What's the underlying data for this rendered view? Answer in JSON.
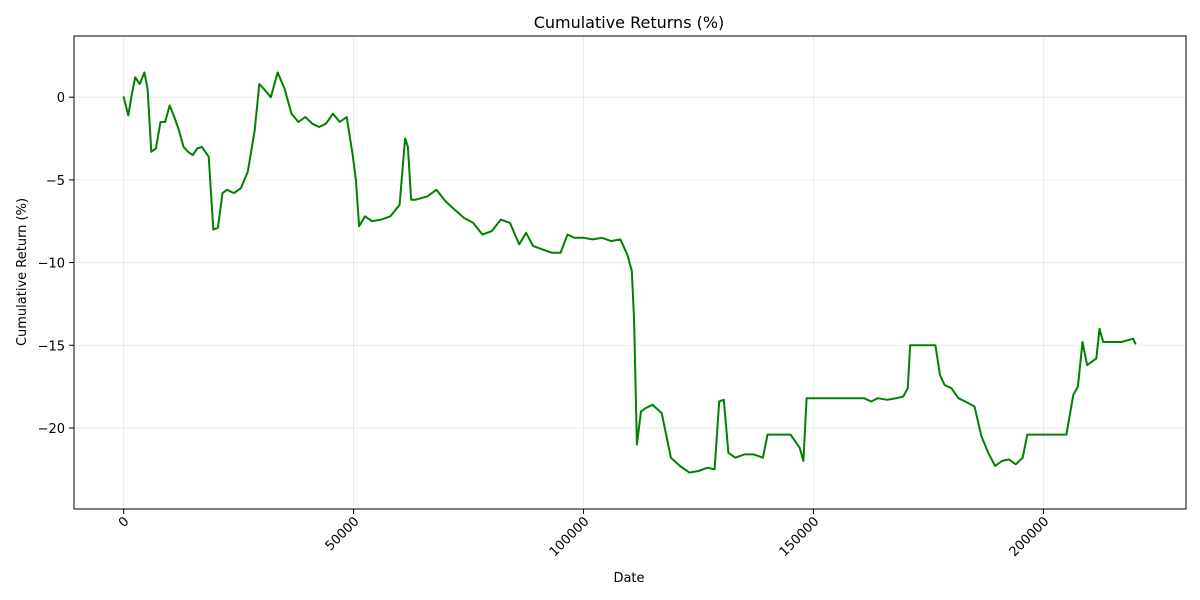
{
  "chart_data": {
    "type": "line",
    "title": "Cumulative Returns (%)",
    "xlabel": "Date",
    "ylabel": "Cumulative Return (%)",
    "xlim": [
      -10800,
      231000
    ],
    "ylim": [
      -24.9,
      3.7
    ],
    "xticks": [
      0,
      50000,
      100000,
      150000,
      200000
    ],
    "xtick_labels": [
      "0",
      "50000",
      "100000",
      "150000",
      "200000"
    ],
    "xtick_rotation": 45,
    "yticks": [
      0,
      -5,
      -10,
      -15,
      -20
    ],
    "ytick_labels": [
      "0",
      "−5",
      "−10",
      "−15",
      "−20"
    ],
    "grid": true,
    "legend": "none",
    "series": [
      {
        "color": "#008000",
        "x": [
          0,
          1000,
          1800,
          2500,
          3500,
          4500,
          5200,
          6000,
          6500,
          7000,
          8000,
          9000,
          10000,
          11000,
          12000,
          13000,
          14000,
          15000,
          16000,
          17000,
          18500,
          19500,
          20500,
          21500,
          22500,
          24000,
          25500,
          27000,
          28500,
          29500,
          30500,
          32000,
          33500,
          35000,
          36500,
          38000,
          39500,
          41000,
          42500,
          44000,
          45500,
          47000,
          48500,
          49800,
          50500,
          51200,
          52500,
          54000,
          56000,
          58000,
          60000,
          61200,
          61800,
          62500,
          63500,
          66000,
          68000,
          70000,
          72000,
          74000,
          76000,
          78000,
          80000,
          82000,
          84000,
          86000,
          87500,
          89000,
          91000,
          93000,
          95000,
          96500,
          98000,
          100000,
          102000,
          104000,
          106000,
          108000,
          109500,
          110500,
          111000,
          111600,
          112500,
          113500,
          115000,
          117000,
          119000,
          121000,
          123000,
          125000,
          127000,
          128500,
          129500,
          130500,
          131500,
          133000,
          135000,
          137000,
          139000,
          140000,
          142500,
          145000,
          147000,
          147800,
          148500,
          155000,
          161000,
          162500,
          164000,
          166000,
          168000,
          169500,
          170500,
          171000,
          172500,
          175000,
          176500,
          177500,
          178500,
          180000,
          181500,
          183000,
          185000,
          186500,
          188000,
          189500,
          191000,
          192500,
          194000,
          195500,
          196500,
          197500,
          201000,
          205000,
          206500,
          207500,
          208500,
          209500,
          210500,
          211500,
          212200,
          213000,
          214500,
          217000,
          219500,
          220000
        ],
        "y": [
          0,
          -1.1,
          0.2,
          1.2,
          0.8,
          1.5,
          0.5,
          -3.3,
          -3.2,
          -3.1,
          -1.5,
          -1.5,
          -0.5,
          -1.2,
          -2.0,
          -3.0,
          -3.3,
          -3.5,
          -3.1,
          -3.0,
          -3.6,
          -8.0,
          -7.9,
          -5.8,
          -5.6,
          -5.8,
          -5.5,
          -4.5,
          -2.0,
          0.8,
          0.5,
          0.0,
          1.5,
          0.5,
          -1.0,
          -1.5,
          -1.2,
          -1.6,
          -1.8,
          -1.6,
          -1.0,
          -1.5,
          -1.2,
          -3.5,
          -5.0,
          -7.8,
          -7.2,
          -7.5,
          -7.4,
          -7.2,
          -6.5,
          -2.5,
          -3.0,
          -6.2,
          -6.2,
          -6.0,
          -5.6,
          -6.3,
          -6.8,
          -7.3,
          -7.6,
          -8.3,
          -8.1,
          -7.4,
          -7.6,
          -8.9,
          -8.2,
          -9.0,
          -9.2,
          -9.4,
          -9.4,
          -8.3,
          -8.5,
          -8.5,
          -8.6,
          -8.5,
          -8.7,
          -8.6,
          -9.5,
          -10.5,
          -13.5,
          -21.0,
          -19.0,
          -18.8,
          -18.6,
          -19.1,
          -21.8,
          -22.3,
          -22.7,
          -22.6,
          -22.4,
          -22.5,
          -18.4,
          -18.3,
          -21.5,
          -21.8,
          -21.6,
          -21.6,
          -21.8,
          -20.4,
          -20.4,
          -20.4,
          -21.2,
          -22.0,
          -18.2,
          -18.2,
          -18.2,
          -18.4,
          -18.2,
          -18.3,
          -18.2,
          -18.1,
          -17.6,
          -15.0,
          -15.0,
          -15.0,
          -15.0,
          -16.8,
          -17.4,
          -17.6,
          -18.2,
          -18.4,
          -18.7,
          -20.5,
          -21.5,
          -22.3,
          -22.0,
          -21.9,
          -22.2,
          -21.8,
          -20.4,
          -20.4,
          -20.4,
          -20.4,
          -18.0,
          -17.5,
          -14.8,
          -16.2,
          -16.0,
          -15.8,
          -14.0,
          -14.8,
          -14.8,
          -14.8,
          -14.6,
          -14.9
        ]
      }
    ]
  }
}
